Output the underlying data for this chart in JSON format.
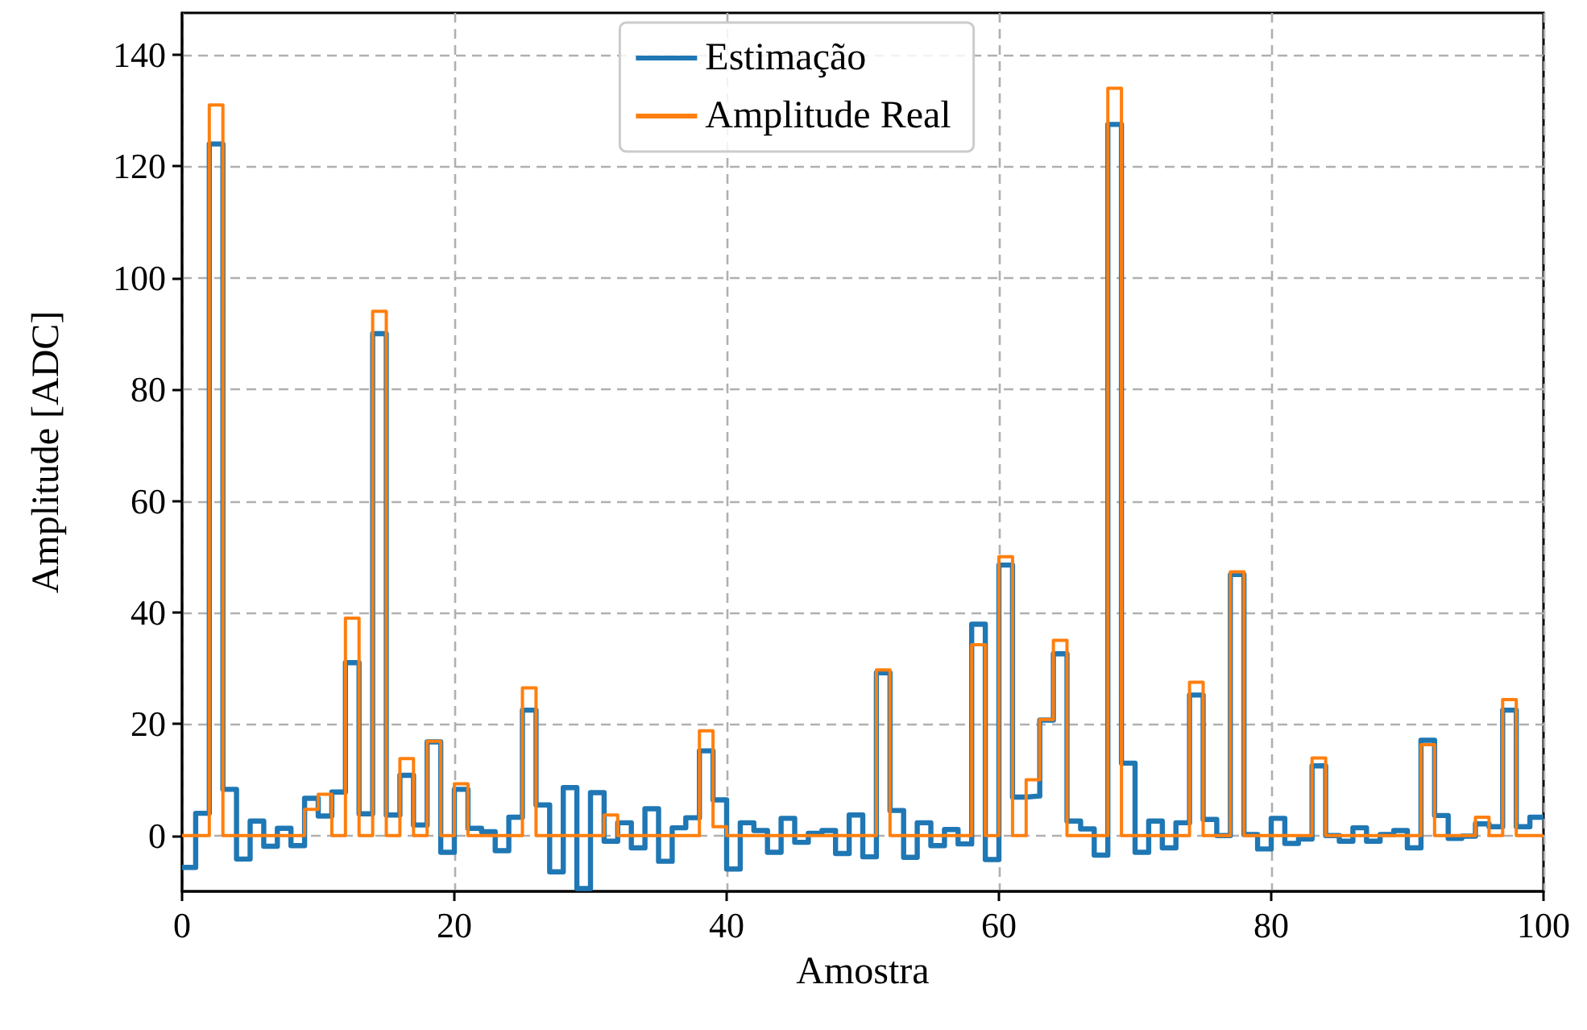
{
  "chart_data": {
    "type": "step",
    "xlabel": "Amostra",
    "ylabel": "Amplitude [ADC]",
    "x": [
      0,
      1,
      2,
      3,
      4,
      5,
      6,
      7,
      8,
      9,
      10,
      11,
      12,
      13,
      14,
      15,
      16,
      17,
      18,
      19,
      20,
      21,
      22,
      23,
      24,
      25,
      26,
      27,
      28,
      29,
      30,
      31,
      32,
      33,
      34,
      35,
      36,
      37,
      38,
      39,
      40,
      41,
      42,
      43,
      44,
      45,
      46,
      47,
      48,
      49,
      50,
      51,
      52,
      53,
      54,
      55,
      56,
      57,
      58,
      59,
      60,
      61,
      62,
      63,
      64,
      65,
      66,
      67,
      68,
      69,
      70,
      71,
      72,
      73,
      74,
      75,
      76,
      77,
      78,
      79,
      80,
      81,
      82,
      83,
      84,
      85,
      86,
      87,
      88,
      89,
      90,
      91,
      92,
      93,
      94,
      95,
      96,
      97,
      98,
      99,
      100
    ],
    "series": [
      {
        "name": "Estimação",
        "color": "#1f77b4",
        "values": [
          -5.7,
          4,
          124,
          8.3,
          -4.2,
          2.6,
          -1.9,
          1.3,
          -1.8,
          6.7,
          3.5,
          7.8,
          31,
          3.9,
          90,
          3.7,
          10.8,
          1.9,
          16.8,
          -3,
          8.3,
          1.3,
          0.7,
          -2.7,
          3.3,
          22.5,
          5.5,
          -6.5,
          8.6,
          -9.5,
          7.7,
          -1,
          2.3,
          -2.2,
          4.8,
          -4.6,
          1.4,
          3.2,
          15.2,
          6.4,
          -6,
          2.3,
          0.9,
          -3,
          3.1,
          -1.2,
          0.4,
          0.9,
          -3.2,
          3.7,
          -3.8,
          29.2,
          4.5,
          -3.9,
          2.3,
          -1.8,
          1.1,
          -1.5,
          37.9,
          -4.3,
          48.5,
          6.9,
          7.1,
          20.7,
          32.6,
          2.6,
          1.2,
          -3.5,
          127.5,
          13,
          -3,
          2.6,
          -2.2,
          2.3,
          25.2,
          2.9,
          0,
          46.8,
          0.2,
          -2.4,
          3.1,
          -1.4,
          -0.6,
          12.5,
          0,
          -1,
          1.4,
          -1,
          0.2,
          0.9,
          -2.2,
          17.1,
          3.6,
          -0.5,
          -0.1,
          2.1,
          1.6,
          22.5,
          1.6,
          3.3,
          3.3
        ]
      },
      {
        "name": "Amplitude Real",
        "color": "#ff7f0e",
        "values": [
          0,
          0,
          131,
          0,
          0,
          0,
          0,
          0,
          0,
          4.7,
          7.4,
          0,
          39,
          0,
          94,
          0,
          13.8,
          0,
          16.9,
          0,
          9.3,
          0,
          0,
          0,
          0,
          26.5,
          0,
          0,
          0,
          0,
          0,
          3.7,
          0,
          0,
          0,
          0,
          0,
          0,
          18.8,
          1.6,
          0,
          0,
          0,
          0,
          0,
          0,
          0,
          0,
          0,
          0,
          0,
          29.7,
          0,
          0,
          0,
          0,
          0,
          0,
          34.2,
          0,
          50,
          0,
          10,
          20.8,
          35,
          0,
          0,
          0,
          134,
          0,
          0,
          0,
          0,
          0,
          27.5,
          0,
          0,
          47.3,
          0,
          0,
          0,
          0,
          0,
          13.9,
          0,
          0,
          0,
          0,
          0,
          0,
          0,
          16.3,
          0,
          0,
          0,
          3.3,
          0,
          24.4,
          0,
          0,
          0
        ]
      }
    ],
    "xlim": [
      0,
      100
    ],
    "xticks": [
      0,
      20,
      40,
      60,
      80,
      100
    ],
    "ylim": [
      -10,
      147.5
    ],
    "yticks": [
      0,
      20,
      40,
      60,
      80,
      100,
      120,
      140
    ],
    "grid": true,
    "legend": "top",
    "marker": "none",
    "line_style": "solid"
  }
}
